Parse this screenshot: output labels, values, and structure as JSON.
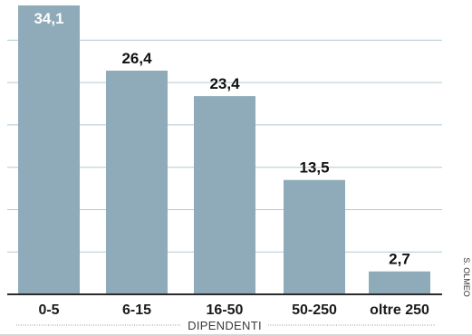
{
  "chart_data": {
    "type": "bar",
    "categories": [
      "0-5",
      "6-15",
      "16-50",
      "50-250",
      "oltre 250"
    ],
    "values": [
      34.1,
      26.4,
      23.4,
      13.5,
      2.7
    ],
    "value_labels": [
      "34,1",
      "26,4",
      "23,4",
      "13,5",
      "2,7"
    ],
    "xlabel": "DIPENDENTI",
    "ylim": [
      0,
      35
    ],
    "grid": true,
    "legend": "none"
  },
  "credit": "S. OLMEO",
  "colors": {
    "bar": "#8fabb9",
    "grid": "#b5c8d2",
    "axis": "#2b2b2b",
    "top_label_on_bar": "#ffffff",
    "label": "#111111",
    "bottom_rule": "#c7c7c7"
  }
}
